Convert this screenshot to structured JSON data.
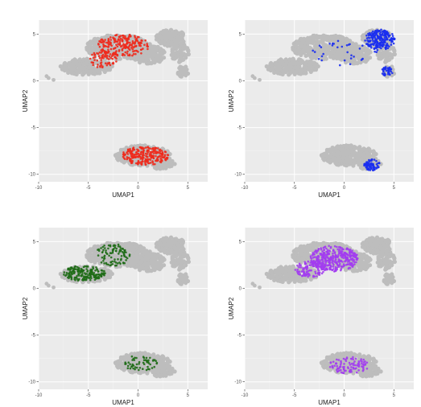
{
  "chart_data": [
    {
      "type": "scatter",
      "xlabel": "UMAP1",
      "ylabel": "UMAP2",
      "xlim": [
        -10,
        7
      ],
      "ylim": [
        -10.8,
        6.5
      ],
      "x_ticks": [
        "-10",
        "-5",
        "0",
        "5"
      ],
      "y_ticks": [
        "5",
        "0",
        "-5",
        "-10"
      ],
      "highlight_color": "#ee2a1c",
      "background_color": "#bdbdbd",
      "highlight_region": "upper-left cluster centre and the lower cluster"
    },
    {
      "type": "scatter",
      "xlabel": "UMAP1",
      "ylabel": "UMAP2",
      "xlim": [
        -10,
        7
      ],
      "ylim": [
        -10.8,
        6.5
      ],
      "x_ticks": [
        "-10",
        "-5",
        "0",
        "5"
      ],
      "y_ticks": [
        "5",
        "0",
        "-5",
        "-10"
      ],
      "highlight_color": "#1a2ef0",
      "background_color": "#bdbdbd",
      "highlight_region": "right end of the upper cluster, lower-right tip of the lower cluster"
    },
    {
      "type": "scatter",
      "xlabel": "UMAP1",
      "ylabel": "UMAP2",
      "xlim": [
        -10,
        7
      ],
      "ylim": [
        -10.8,
        6.5
      ],
      "x_ticks": [
        "-10",
        "-5",
        "0",
        "5"
      ],
      "y_ticks": [
        "5",
        "0",
        "-5",
        "-10"
      ],
      "highlight_color": "#1e6b16",
      "background_color": "#bdbdbd",
      "highlight_region": "left arm of the upper cluster"
    },
    {
      "type": "scatter",
      "xlabel": "UMAP1",
      "ylabel": "UMAP2",
      "xlim": [
        -10,
        7
      ],
      "ylim": [
        -10.8,
        6.5
      ],
      "x_ticks": [
        "-10",
        "-5",
        "0",
        "5"
      ],
      "y_ticks": [
        "5",
        "0",
        "-5",
        "-10"
      ],
      "highlight_color": "#a23cf0",
      "background_color": "#bdbdbd",
      "highlight_region": "centre of the upper cluster, scattered in the lower cluster"
    }
  ]
}
